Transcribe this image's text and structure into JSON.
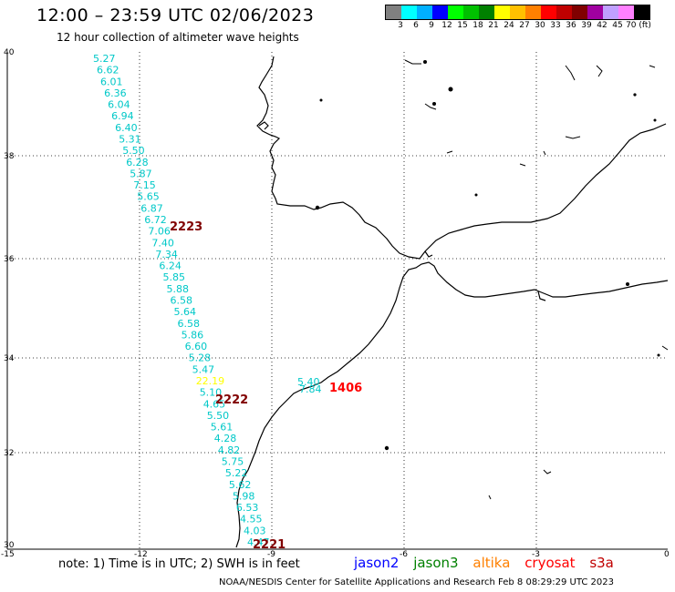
{
  "header": {
    "title": "12:00 – 23:59 UTC 02/06/2023",
    "subtitle": "12 hour collection of altimeter wave heights"
  },
  "color_scale": {
    "labels": [
      "3",
      "6",
      "9",
      "12",
      "15",
      "18",
      "21",
      "24",
      "27",
      "30",
      "33",
      "36",
      "39",
      "42",
      "45",
      "70 (ft)"
    ],
    "colors": [
      "#808080",
      "#00ffff",
      "#00b0ff",
      "#0000ff",
      "#00ff00",
      "#00c000",
      "#008000",
      "#ffff00",
      "#ffc000",
      "#ff8000",
      "#ff0000",
      "#c00000",
      "#800000",
      "#a000a0",
      "#c0a0ff",
      "#ff80ff",
      "#000000"
    ]
  },
  "axes": {
    "lat_labels": [
      "40",
      "38",
      "36",
      "34",
      "32",
      "30"
    ],
    "lon_labels": [
      "-15",
      "-12",
      "-9",
      "-6",
      "-3",
      "0"
    ]
  },
  "track_values": [
    "5.27",
    "6.62",
    "6.01",
    "6.36",
    "6.04",
    "6.94",
    "6.40",
    "5.31",
    "5.50",
    "6.28",
    "5.87",
    "7.15",
    "5.65",
    "6.87",
    "6.72",
    "7.06",
    "7.40",
    "7.34",
    "6.24",
    "5.85",
    "5.88",
    "6.58",
    "5.64",
    "6.58",
    "5.86",
    "6.60",
    "5.28",
    "5.47",
    "22.19",
    "5.10",
    "4.65",
    "5.50",
    "5.61",
    "4.28",
    "4.82",
    "5.75",
    "5.22",
    "5.62",
    "5.98",
    "6.53",
    "4.55",
    "4.03",
    "4.47"
  ],
  "track_colors": {
    "normal": "#00c8c8",
    "high": "#ffff00"
  },
  "extra_values": [
    "5.40",
    "7.84"
  ],
  "pass_labels": [
    {
      "text": "2223",
      "color": "#800000"
    },
    {
      "text": "2222",
      "color": "#800000"
    },
    {
      "text": "2221",
      "color": "#800000"
    },
    {
      "text": "1406",
      "color": "#ff0000"
    }
  ],
  "note": "note:  1) Time is in UTC;  2) SWH is in feet",
  "satellites": [
    {
      "name": "jason2",
      "color": "#0000ff"
    },
    {
      "name": "jason3",
      "color": "#008000"
    },
    {
      "name": "altika",
      "color": "#ff8000"
    },
    {
      "name": "cryosat",
      "color": "#ff0000"
    },
    {
      "name": "s3a",
      "color": "#c00000"
    }
  ],
  "footer": "NOAA/NESDIS Center for Satellite Applications and Research    Feb  8 08:29:29 UTC 2023"
}
